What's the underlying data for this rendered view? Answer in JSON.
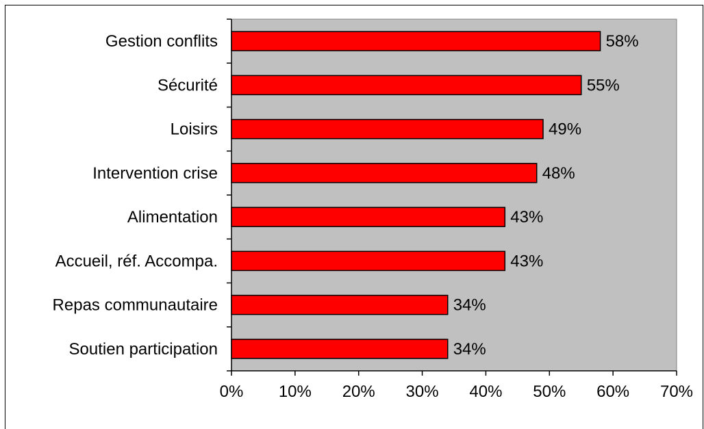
{
  "chart_data": {
    "type": "bar",
    "orientation": "horizontal",
    "categories": [
      "Gestion conflits",
      "Sécurité",
      "Loisirs",
      "Intervention crise",
      "Alimentation",
      "Accueil, réf. Accompa.",
      "Repas communautaire",
      "Soutien participation"
    ],
    "values": [
      58,
      55,
      49,
      48,
      43,
      43,
      34,
      34
    ],
    "data_labels": [
      "58%",
      "55%",
      "49%",
      "48%",
      "43%",
      "43%",
      "34%",
      "34%"
    ],
    "x_ticks": [
      "0%",
      "10%",
      "20%",
      "30%",
      "40%",
      "50%",
      "60%",
      "70%"
    ],
    "xlim": [
      0,
      70
    ],
    "xlabel": "",
    "ylabel": "",
    "title": "",
    "grid": false,
    "legend": "none",
    "colors": {
      "bar_fill": "#ff0000",
      "bar_stroke": "#000000",
      "plot_background": "#c0c0c0",
      "axis": "#000000"
    }
  }
}
